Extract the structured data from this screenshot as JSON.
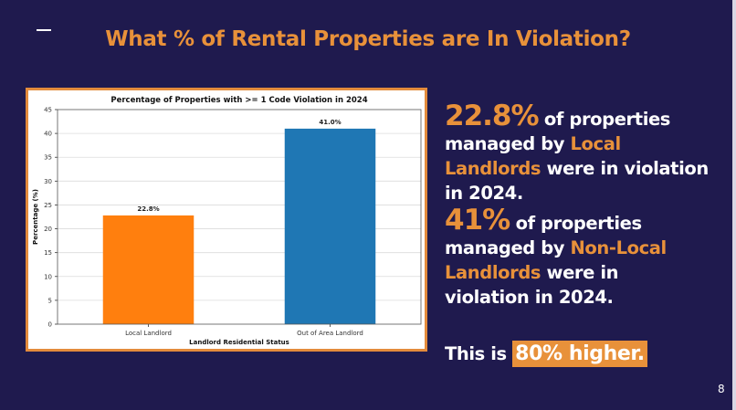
{
  "slide": {
    "title": "What % of Rental Properties are In Violation?",
    "page_number": "8",
    "accent_color": "#e8913a",
    "background_color": "#1f1a4e"
  },
  "text": {
    "p1_value": "22.8%",
    "p1_a": " of properties managed by ",
    "p1_highlight": "Local Landlords",
    "p1_b": " were in violation in 2024.",
    "p2_value": "41%",
    "p2_a": " of properties managed by ",
    "p2_highlight": "Non-Local Landlords",
    "p2_b": " were in violation in 2024.",
    "p3_a": "This is ",
    "p3_highlight": "80% higher."
  },
  "chart_data": {
    "type": "bar",
    "title": "Percentage of Properties with >= 1 Code Violation in 2024",
    "xlabel": "Landlord Residential Status",
    "ylabel": "Percentage (%)",
    "categories": [
      "Local Landlord",
      "Out of Area Landlord"
    ],
    "values": [
      22.8,
      41.0
    ],
    "data_labels": [
      "22.8%",
      "41.0%"
    ],
    "colors": [
      "#ff7f0e",
      "#1f77b4"
    ],
    "ylim": [
      0,
      45
    ],
    "yticks": [
      0,
      5,
      10,
      15,
      20,
      25,
      30,
      35,
      40,
      45
    ],
    "grid": "y"
  }
}
